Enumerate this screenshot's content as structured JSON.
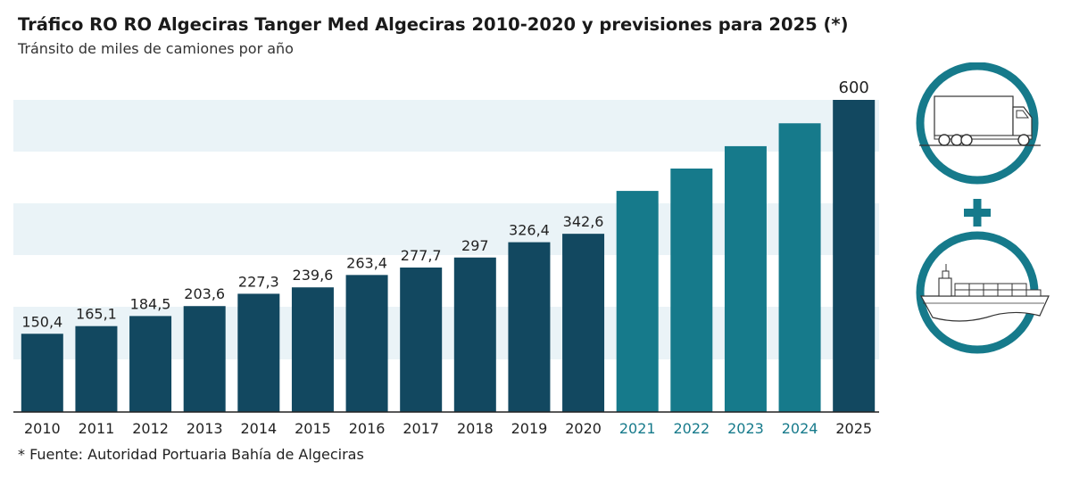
{
  "title": "Tráfico RO RO Algeciras Tanger Med Algeciras 2010-2020 y previsiones para 2025 (*)",
  "subtitle": "Tránsito de miles de camiones por año",
  "source": "* Fuente: Autoridad Portuaria Bahía de Algeciras",
  "colors": {
    "historical": "#124860",
    "forecast": "#167a8b",
    "forecast_label": "#167a8b",
    "final": "#124860",
    "band": "#eaf3f7",
    "icon_ring": "#167a8b"
  },
  "icons": [
    "truck-icon",
    "plus-icon",
    "ship-icon"
  ],
  "chart_data": {
    "type": "bar",
    "title": "Tráfico RO RO Algeciras Tanger Med Algeciras 2010-2020 y previsiones para 2025 (*)",
    "subtitle": "Tránsito de miles de camiones por año",
    "xlabel": "",
    "ylabel": "",
    "ylim": [
      0,
      600
    ],
    "grid": false,
    "categories": [
      "2010",
      "2011",
      "2012",
      "2013",
      "2014",
      "2015",
      "2016",
      "2017",
      "2018",
      "2019",
      "2020",
      "2021",
      "2022",
      "2023",
      "2024",
      "2025"
    ],
    "values": [
      150.4,
      165.1,
      184.5,
      203.6,
      227.3,
      239.6,
      263.4,
      277.7,
      297,
      326.4,
      342.6,
      425,
      468,
      511,
      555,
      600
    ],
    "value_labels": [
      "150,4",
      "165,1",
      "184,5",
      "203,6",
      "227,3",
      "239,6",
      "263,4",
      "277,7",
      "297",
      "326,4",
      "342,6",
      "",
      "",
      "",
      "",
      "600"
    ],
    "forecast_categories": [
      "2021",
      "2022",
      "2023",
      "2024"
    ]
  }
}
